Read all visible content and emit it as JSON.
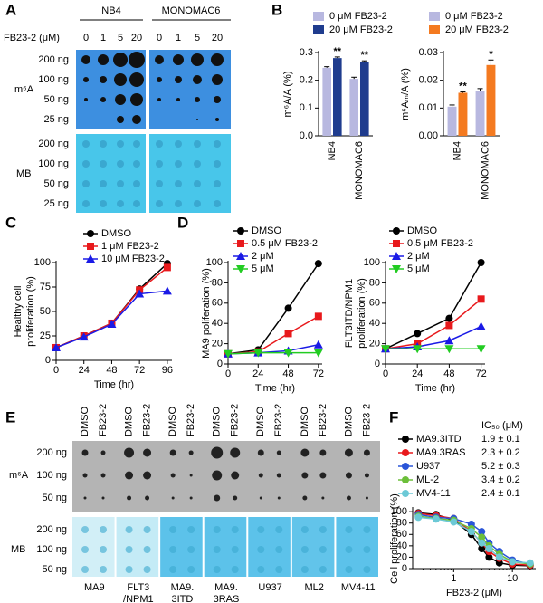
{
  "panel_labels": [
    "A",
    "B",
    "C",
    "D",
    "E",
    "F"
  ],
  "blots": {
    "A": {
      "groups": [
        "NB4",
        "MONOMAC6"
      ],
      "dose_label": "FB23-2 (μM)",
      "doses": [
        "0",
        "1",
        "5",
        "20",
        "0",
        "1",
        "5",
        "20"
      ],
      "m6a_label": "m⁶A",
      "mb_label": "MB",
      "amounts": [
        "200 ng",
        "100 ng",
        "50 ng",
        "25 ng"
      ]
    },
    "E": {
      "treatments": [
        "DMSO",
        "FB23-2",
        "DMSO",
        "FB23-2",
        "DMSO",
        "FB23-2",
        "DMSO",
        "FB23-2",
        "DMSO",
        "FB23-2",
        "DMSO",
        "FB23-2",
        "DMSO",
        "FB23-2"
      ],
      "m6a_label": "m⁶A",
      "mb_label": "MB",
      "amounts": [
        "200 ng",
        "100 ng",
        "50 ng"
      ],
      "cell_lines": [
        [
          "MA9"
        ],
        [
          "FLT3",
          "/NPM1"
        ],
        [
          "MA9.",
          "3ITD"
        ],
        [
          "MA9.",
          "3RAS"
        ],
        [
          "U937"
        ],
        [
          "ML2"
        ],
        [
          "MV4-11"
        ]
      ]
    }
  },
  "chart_data": [
    {
      "type": "bar",
      "y_label": [
        "m⁶A/A (%)"
      ],
      "categories": [
        "NB4",
        "MONOMAC6"
      ],
      "series": [
        {
          "name": "0 μM FB23-2",
          "color": "#b8b8e0",
          "values": [
            0.245,
            0.205
          ],
          "errors": [
            0.004,
            0.006
          ]
        },
        {
          "name": "20 μM FB23-2",
          "color": "#1f3c8e",
          "values": [
            0.28,
            0.265
          ],
          "errors": [
            0.004,
            0.005
          ]
        }
      ],
      "annotations": [
        "**",
        "**"
      ],
      "ylim": [
        0,
        0.3
      ],
      "yticks": [
        {
          "value": 0,
          "label": "0.0"
        },
        0.1,
        0.2,
        0.3
      ]
    },
    {
      "type": "bar",
      "y_label": [
        "m⁶Aₘ/A (%)"
      ],
      "categories": [
        "NB4",
        "MONOMAC6"
      ],
      "series": [
        {
          "name": "0 μM FB23-2",
          "color": "#b8b8e0",
          "values": [
            0.0105,
            0.016
          ],
          "errors": [
            0.0006,
            0.001
          ]
        },
        {
          "name": "20 μM FB23-2",
          "color": "#f47a20",
          "values": [
            0.0155,
            0.0255
          ],
          "errors": [
            0.0003,
            0.0018
          ]
        }
      ],
      "annotations": [
        "**",
        "*"
      ],
      "ylim": [
        0,
        0.03
      ],
      "yticks": [
        {
          "value": 0,
          "label": "0.00"
        },
        0.01,
        0.02,
        0.03
      ]
    },
    {
      "type": "line",
      "y_label": [
        "Healthy cell",
        "proliferation (%)"
      ],
      "x_label": "Time (hr)",
      "x": [
        0,
        24,
        48,
        72,
        96
      ],
      "series": [
        {
          "name": "DMSO",
          "color": "#000000",
          "marker": "circle",
          "values": [
            13,
            25,
            38,
            73,
            99
          ]
        },
        {
          "name": "1 μM FB23-2",
          "color": "#e8191c",
          "marker": "square",
          "values": [
            13,
            25,
            38,
            72,
            95
          ]
        },
        {
          "name": "10 μM FB23-2",
          "color": "#1a1ae6",
          "marker": "triangle",
          "values": [
            13,
            24,
            37,
            68,
            71
          ]
        }
      ],
      "xlim": [
        0,
        100
      ],
      "xticks": [
        0,
        24,
        48,
        72,
        96
      ],
      "ylim": [
        0,
        100
      ],
      "yticks": [
        0,
        25,
        50,
        75,
        100
      ]
    },
    {
      "type": "line",
      "y_label": [
        "MA9 poliferation (%)"
      ],
      "x_label": "Time (hr)",
      "x": [
        0,
        24,
        48,
        72
      ],
      "series": [
        {
          "name": "DMSO",
          "color": "#000000",
          "marker": "circle",
          "values": [
            10,
            14,
            55,
            99
          ]
        },
        {
          "name": "0.5 μM FB23-2",
          "color": "#e8191c",
          "marker": "square",
          "values": [
            10,
            12,
            30,
            47
          ]
        },
        {
          "name": "2 μM",
          "color": "#1a1ae6",
          "marker": "triangle",
          "values": [
            10,
            11,
            13,
            19
          ]
        },
        {
          "name": "5 μM",
          "color": "#22cc22",
          "marker": "triangle-down",
          "values": [
            10,
            11,
            11,
            11
          ]
        }
      ],
      "xlim": [
        0,
        75
      ],
      "xticks": [
        0,
        24,
        48,
        72
      ],
      "ylim": [
        0,
        100
      ],
      "yticks": [
        0,
        20,
        40,
        60,
        80,
        100
      ]
    },
    {
      "type": "line",
      "y_label": [
        "FLT3ITD/NPM1",
        "proliferation (%)"
      ],
      "x_label": "Time (hr)",
      "x": [
        0,
        24,
        48,
        72
      ],
      "series": [
        {
          "name": "DMSO",
          "color": "#000000",
          "marker": "circle",
          "values": [
            15,
            30,
            45,
            100
          ]
        },
        {
          "name": "0.5 μM FB23-2",
          "color": "#e8191c",
          "marker": "square",
          "values": [
            15,
            20,
            38,
            64
          ]
        },
        {
          "name": "2 μM",
          "color": "#1a1ae6",
          "marker": "triangle",
          "values": [
            15,
            17,
            23,
            37
          ]
        },
        {
          "name": "5 μM",
          "color": "#22cc22",
          "marker": "triangle-down",
          "values": [
            15,
            15,
            15,
            15
          ]
        }
      ],
      "xlim": [
        0,
        75
      ],
      "xticks": [
        0,
        24,
        48,
        72
      ],
      "ylim": [
        0,
        100
      ],
      "yticks": [
        0,
        20,
        40,
        60,
        80,
        100
      ]
    },
    {
      "type": "line",
      "y_label": [
        "Cell proliferation (%)"
      ],
      "x_label": "FB23-2 (μM)",
      "log_x": true,
      "ic50_title": "IC₅₀ (μM)",
      "x": [
        0.25,
        0.5,
        1,
        2,
        3,
        4,
        6,
        10,
        20
      ],
      "series": [
        {
          "name": "MA9.3ITD",
          "color": "#000000",
          "marker": "circle",
          "ic50": "1.9 ± 0.1",
          "values": [
            98,
            95,
            85,
            60,
            35,
            20,
            10,
            6,
            5
          ]
        },
        {
          "name": "MA9.3RAS",
          "color": "#e8191c",
          "marker": "circle",
          "ic50": "2.3 ± 0.2",
          "values": [
            97,
            93,
            88,
            65,
            45,
            30,
            18,
            8,
            6
          ]
        },
        {
          "name": "U937",
          "color": "#2a55d8",
          "marker": "circle",
          "ic50": "5.2 ± 0.3",
          "values": [
            95,
            90,
            88,
            78,
            65,
            45,
            30,
            15,
            8
          ]
        },
        {
          "name": "ML-2",
          "color": "#6cbf3a",
          "marker": "circle",
          "ic50": "3.4 ± 0.2",
          "values": [
            92,
            88,
            85,
            70,
            55,
            40,
            25,
            12,
            8
          ]
        },
        {
          "name": "MV4-11",
          "color": "#6cc9d6",
          "marker": "circle",
          "ic50": "2.4 ± 0.1",
          "values": [
            90,
            87,
            82,
            65,
            45,
            35,
            20,
            12,
            10
          ]
        }
      ],
      "xlim": [
        0.2,
        25
      ],
      "xticks": [
        1,
        10
      ],
      "ylim": [
        0,
        105
      ],
      "yticks": [
        0,
        20,
        40,
        60,
        80,
        100
      ]
    }
  ]
}
